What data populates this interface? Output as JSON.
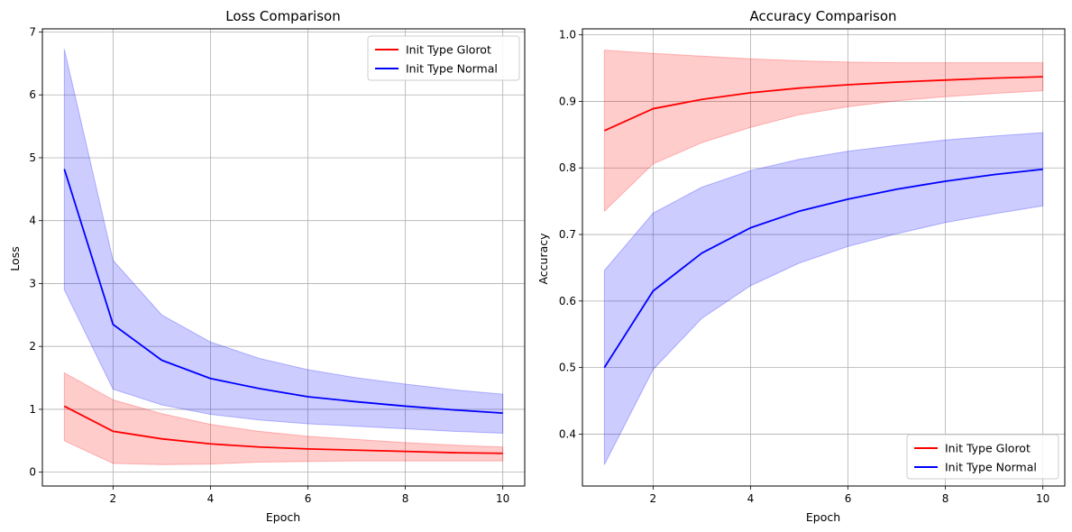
{
  "chart_data": [
    {
      "type": "line",
      "title": "Loss Comparison",
      "xlabel": "Epoch",
      "ylabel": "Loss",
      "xlim": [
        0.55,
        10.45
      ],
      "ylim": [
        -0.22,
        7.05
      ],
      "xticks": [
        2,
        4,
        6,
        8,
        10
      ],
      "yticks": [
        0,
        1,
        2,
        3,
        4,
        5,
        6,
        7
      ],
      "xtick_labels": [
        "2",
        "4",
        "6",
        "8",
        "10"
      ],
      "ytick_labels": [
        "0",
        "1",
        "2",
        "3",
        "4",
        "5",
        "6",
        "7"
      ],
      "grid": true,
      "legend_position": "top-right",
      "x": [
        1,
        2,
        3,
        4,
        5,
        6,
        7,
        8,
        9,
        10
      ],
      "series": [
        {
          "name": "Init Type Glorot",
          "color": "#ff0000",
          "values": [
            1.05,
            0.65,
            0.53,
            0.45,
            0.4,
            0.37,
            0.35,
            0.33,
            0.31,
            0.3
          ],
          "band_upper": [
            1.58,
            1.15,
            0.93,
            0.76,
            0.65,
            0.57,
            0.52,
            0.47,
            0.43,
            0.4
          ],
          "band_lower": [
            0.5,
            0.14,
            0.12,
            0.13,
            0.16,
            0.17,
            0.18,
            0.18,
            0.18,
            0.18
          ]
        },
        {
          "name": "Init Type Normal",
          "color": "#0000ff",
          "values": [
            4.82,
            2.35,
            1.78,
            1.49,
            1.33,
            1.2,
            1.12,
            1.05,
            0.99,
            0.94
          ],
          "band_upper": [
            6.73,
            3.37,
            2.5,
            2.07,
            1.81,
            1.63,
            1.5,
            1.4,
            1.31,
            1.24
          ],
          "band_lower": [
            2.9,
            1.32,
            1.07,
            0.92,
            0.83,
            0.77,
            0.73,
            0.69,
            0.65,
            0.62
          ]
        }
      ]
    },
    {
      "type": "line",
      "title": "Accuracy Comparison",
      "xlabel": "Epoch",
      "ylabel": "Accuracy",
      "xlim": [
        0.55,
        10.45
      ],
      "ylim": [
        0.322,
        1.009
      ],
      "xticks": [
        2,
        4,
        6,
        8,
        10
      ],
      "yticks": [
        0.4,
        0.5,
        0.6,
        0.7,
        0.8,
        0.9,
        1.0
      ],
      "xtick_labels": [
        "2",
        "4",
        "6",
        "8",
        "10"
      ],
      "ytick_labels": [
        "0.4",
        "0.5",
        "0.6",
        "0.7",
        "0.8",
        "0.9",
        "1.0"
      ],
      "grid": true,
      "legend_position": "bottom-right",
      "x": [
        1,
        2,
        3,
        4,
        5,
        6,
        7,
        8,
        9,
        10
      ],
      "series": [
        {
          "name": "Init Type Glorot",
          "color": "#ff0000",
          "values": [
            0.856,
            0.889,
            0.903,
            0.913,
            0.92,
            0.925,
            0.929,
            0.932,
            0.935,
            0.937
          ],
          "band_upper": [
            0.977,
            0.972,
            0.968,
            0.964,
            0.961,
            0.959,
            0.958,
            0.958,
            0.958,
            0.958
          ],
          "band_lower": [
            0.735,
            0.806,
            0.838,
            0.861,
            0.88,
            0.892,
            0.901,
            0.907,
            0.912,
            0.916
          ]
        },
        {
          "name": "Init Type Normal",
          "color": "#0000ff",
          "values": [
            0.5,
            0.615,
            0.672,
            0.71,
            0.735,
            0.753,
            0.768,
            0.78,
            0.79,
            0.798
          ],
          "band_upper": [
            0.646,
            0.732,
            0.771,
            0.796,
            0.813,
            0.825,
            0.834,
            0.842,
            0.848,
            0.853
          ],
          "band_lower": [
            0.354,
            0.497,
            0.574,
            0.623,
            0.657,
            0.682,
            0.701,
            0.718,
            0.731,
            0.743
          ]
        }
      ]
    }
  ]
}
